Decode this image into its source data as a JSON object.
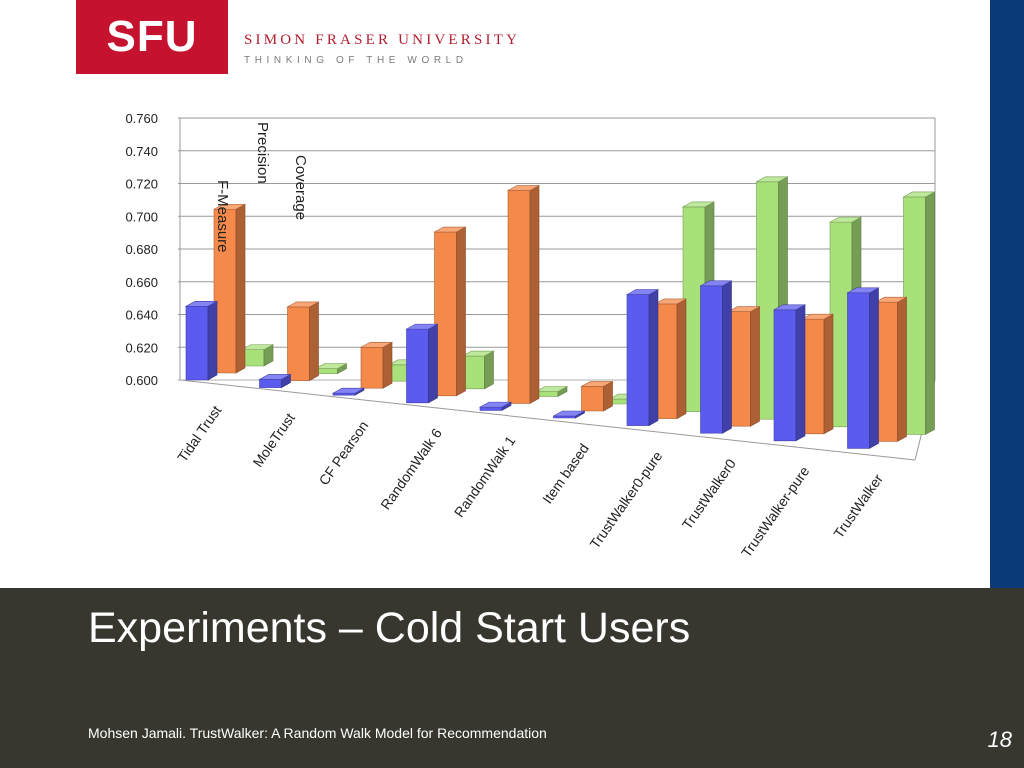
{
  "logo": {
    "mark": "SFU",
    "name": "SIMON FRASER UNIVERSITY",
    "tagline": "THINKING OF THE WORLD"
  },
  "slide": {
    "title": "Experiments – Cold Start Users",
    "credit": "Mohsen Jamali. TrustWalker: A Random Walk Model for Recommendation",
    "page": "18"
  },
  "colors": {
    "stripe": "#0a3a78",
    "footer": "#37372f",
    "fmeasure": "#5b5bf0",
    "precision": "#f5894a",
    "coverage": "#a8e07a",
    "logo_red": "#c4122f"
  },
  "chart_data": {
    "type": "bar",
    "categories": [
      "Tidal Trust",
      "MoleTrust",
      "CF Pearson",
      "RandomWalk 6",
      "RandomWalk 1",
      "Item based",
      "TrustWalker0-pure",
      "TrustWalker0",
      "TrustWalker-pure",
      "TrustWalker"
    ],
    "series": [
      {
        "name": "F-Measure",
        "values": [
          0.645,
          0.605,
          0.601,
          0.645,
          0.602,
          0.601,
          0.68,
          0.69,
          0.68,
          0.695
        ]
      },
      {
        "name": "Precision",
        "values": [
          0.7,
          0.645,
          0.625,
          0.7,
          0.73,
          0.615,
          0.67,
          0.67,
          0.67,
          0.685
        ]
      },
      {
        "name": "Coverage",
        "values": [
          0.61,
          0.603,
          0.61,
          0.62,
          0.603,
          0.603,
          0.725,
          0.745,
          0.725,
          0.745
        ]
      }
    ],
    "yticks": [
      "0.600",
      "0.620",
      "0.640",
      "0.660",
      "0.680",
      "0.700",
      "0.720",
      "0.740",
      "0.760"
    ],
    "ylim": [
      0.6,
      0.76
    ],
    "legend": "depth-axis labels"
  }
}
